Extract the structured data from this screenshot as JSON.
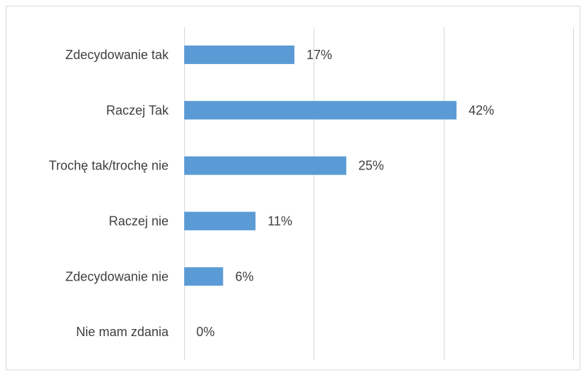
{
  "chart_data": {
    "type": "bar",
    "orientation": "horizontal",
    "categories": [
      "Zdecydowanie tak",
      "Raczej Tak",
      "Trochę tak/trochę nie",
      "Raczej nie",
      "Zdecydowanie nie",
      "Nie mam zdania"
    ],
    "values": [
      17,
      42,
      25,
      11,
      6,
      0
    ],
    "value_labels": [
      "17%",
      "42%",
      "25%",
      "11%",
      "6%",
      "0%"
    ],
    "xlim": [
      0,
      60
    ],
    "x_gridlines": [
      0,
      20,
      40,
      60
    ],
    "grid": true,
    "legend": "none",
    "bar_color": "#5b9bd5"
  }
}
